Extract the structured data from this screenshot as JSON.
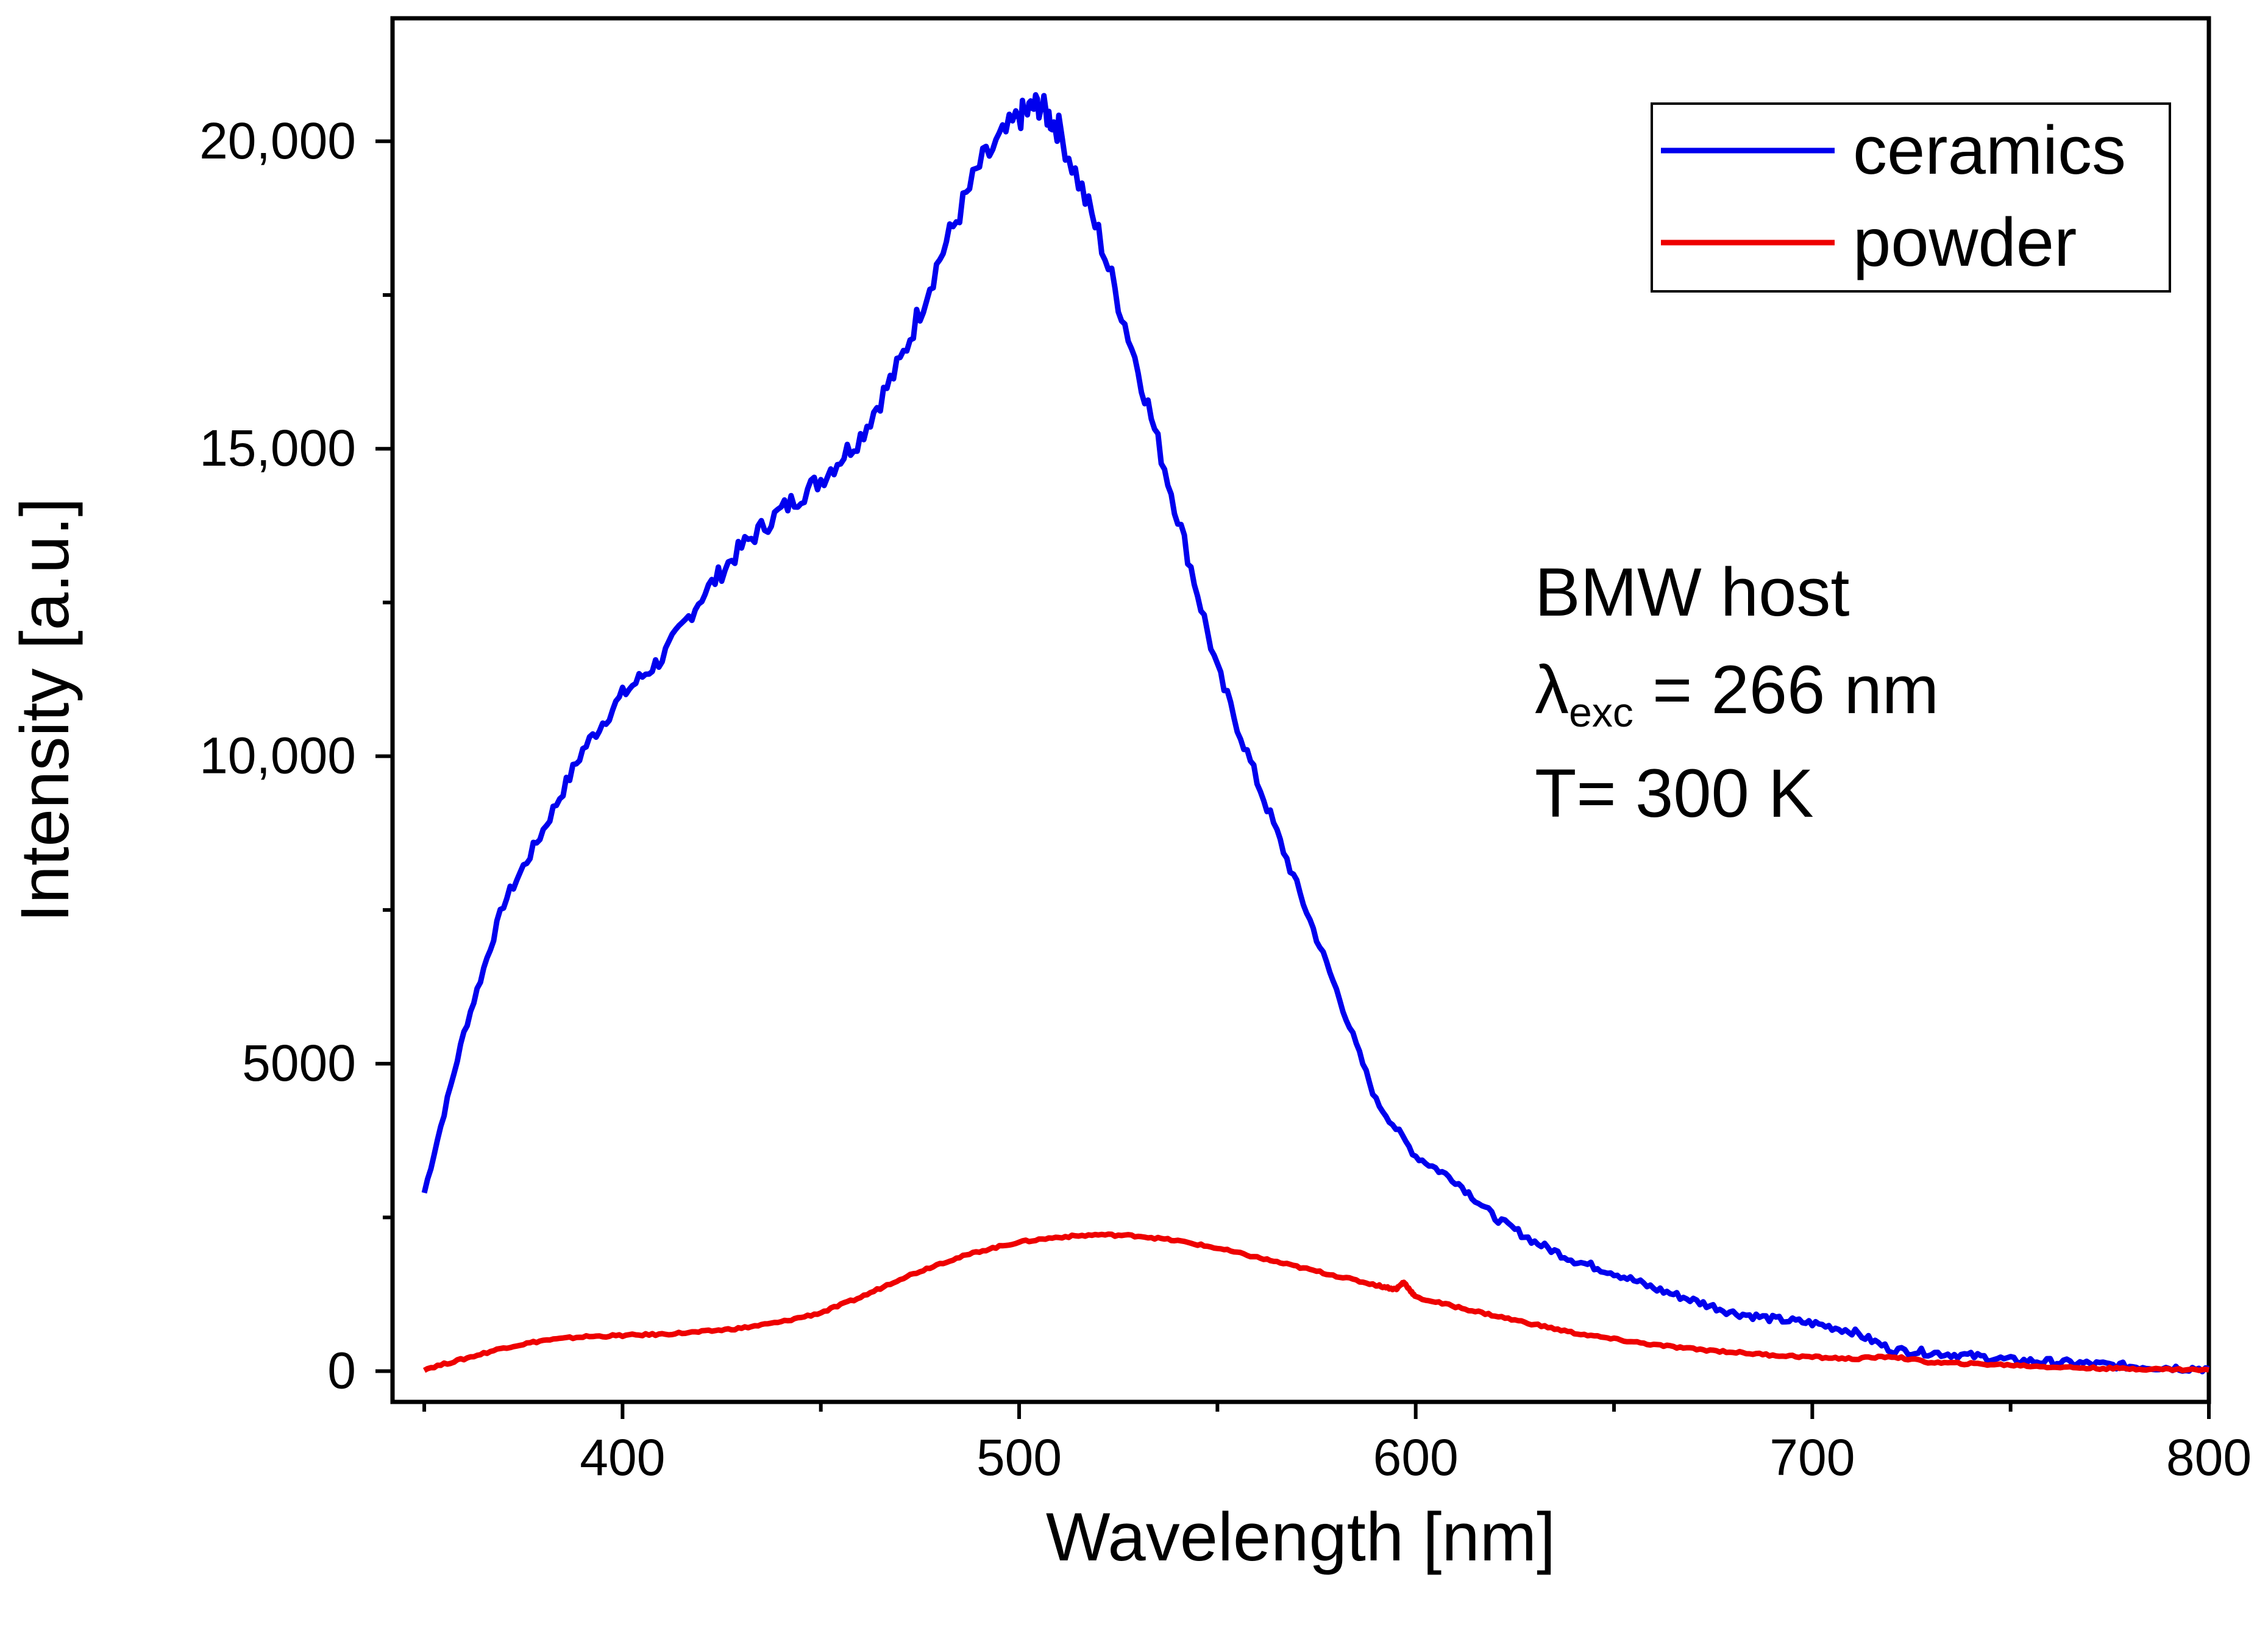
{
  "chart_data": {
    "type": "line",
    "title": "",
    "xlabel": "Wavelength [nm]",
    "ylabel": "Intensity [a.u.]",
    "xlim": [
      342,
      800
    ],
    "ylim": [
      -500,
      22000
    ],
    "x_ticks": [
      400,
      500,
      600,
      700,
      800
    ],
    "x_tick_labels": [
      "400",
      "500",
      "600",
      "700",
      "800"
    ],
    "y_ticks": [
      0,
      5000,
      10000,
      15000,
      20000
    ],
    "y_tick_labels": [
      "0",
      "5000",
      "10,000",
      "15,000",
      "20,000"
    ],
    "grid": false,
    "legend_position": "top-right",
    "series": [
      {
        "name": "ceramics",
        "color": "#0000ee",
        "x": [
          350,
          360,
          370,
          380,
          390,
          400,
          410,
          420,
          430,
          440,
          450,
          460,
          470,
          480,
          490,
          500,
          505,
          510,
          520,
          530,
          540,
          550,
          560,
          570,
          580,
          590,
          600,
          610,
          620,
          630,
          640,
          650,
          660,
          670,
          680,
          690,
          700,
          710,
          720,
          730,
          740,
          750,
          760,
          770,
          780,
          790,
          800
        ],
        "y": [
          2900,
          5500,
          7600,
          8800,
          10100,
          11000,
          11600,
          12600,
          13400,
          14000,
          14500,
          15200,
          16400,
          18100,
          19600,
          20400,
          20600,
          20200,
          18500,
          16300,
          13900,
          11400,
          9600,
          7900,
          6200,
          4400,
          3500,
          3100,
          2500,
          2100,
          1800,
          1600,
          1350,
          1150,
          950,
          850,
          780,
          650,
          350,
          300,
          250,
          180,
          150,
          120,
          80,
          60,
          40
        ]
      },
      {
        "name": "powder",
        "color": "#ee0000",
        "x": [
          350,
          360,
          370,
          380,
          390,
          400,
          410,
          420,
          430,
          440,
          450,
          460,
          470,
          480,
          490,
          500,
          510,
          520,
          530,
          540,
          550,
          560,
          570,
          580,
          590,
          595,
          597,
          600,
          610,
          620,
          630,
          640,
          650,
          660,
          670,
          680,
          690,
          700,
          710,
          720,
          730,
          740,
          750,
          760,
          770,
          780,
          790,
          800
        ],
        "y": [
          30,
          200,
          380,
          500,
          560,
          580,
          600,
          640,
          700,
          800,
          950,
          1200,
          1500,
          1750,
          1950,
          2100,
          2180,
          2220,
          2200,
          2120,
          2000,
          1850,
          1700,
          1550,
          1400,
          1330,
          1450,
          1200,
          1050,
          900,
          760,
          620,
          520,
          430,
          360,
          310,
          260,
          230,
          200,
          240,
          140,
          120,
          100,
          70,
          50,
          40,
          30,
          20
        ]
      }
    ],
    "annotations": {
      "line1": "BMW host",
      "lambda_symbol": "λ",
      "lambda_sub": "exc",
      "line2_rest": " = 266 nm",
      "line3": "T= 300 K"
    }
  }
}
